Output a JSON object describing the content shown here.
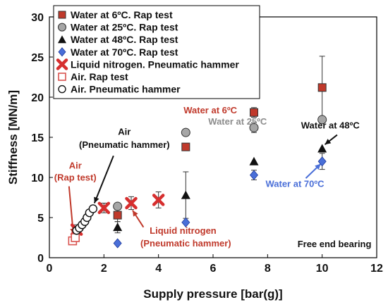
{
  "chart_data": {
    "type": "scatter",
    "xlabel": "Supply pressure [bar(g)]",
    "ylabel": "Stiffness [MN/m]",
    "xlim": [
      0,
      12
    ],
    "ylim": [
      0,
      30
    ],
    "x_ticks": [
      "0",
      "2",
      "4",
      "6",
      "8",
      "10",
      "12"
    ],
    "y_ticks": [
      "0",
      "5",
      "10",
      "15",
      "20",
      "25",
      "30"
    ],
    "grid": false,
    "legend_position": "top-left",
    "series": [
      {
        "name": "Water at 6ºC. Rap test",
        "marker": "square",
        "color": "#c0392b",
        "points": [
          {
            "x": 2.5,
            "y": 5.3,
            "err": 0.8
          },
          {
            "x": 5.0,
            "y": 13.8,
            "err": 0.4
          },
          {
            "x": 7.5,
            "y": 18.1,
            "err": 0.6
          },
          {
            "x": 10.0,
            "y": 21.2,
            "err": 3.9
          }
        ]
      },
      {
        "name": "Water at 25ºC. Rap test",
        "marker": "circle",
        "color": "#a6a6a6",
        "points": [
          {
            "x": 2.5,
            "y": 6.4,
            "err": 0.4
          },
          {
            "x": 5.0,
            "y": 15.6,
            "err": 0.4
          },
          {
            "x": 7.5,
            "y": 16.2,
            "err": 0.6
          },
          {
            "x": 10.0,
            "y": 17.2,
            "err": 0
          }
        ]
      },
      {
        "name": "Water at 48ºC. Rap test",
        "marker": "triangle",
        "color": "#111111",
        "points": [
          {
            "x": 2.5,
            "y": 3.8,
            "err": 0.7
          },
          {
            "x": 5.0,
            "y": 7.8,
            "err": 2.9
          },
          {
            "x": 7.5,
            "y": 12.0,
            "err": 0
          },
          {
            "x": 10.0,
            "y": 13.6,
            "err": 0
          }
        ]
      },
      {
        "name": "Water at 70ºC. Rap test",
        "marker": "diamond",
        "color": "#4a6fd8",
        "points": [
          {
            "x": 2.5,
            "y": 1.8,
            "err": 0
          },
          {
            "x": 5.0,
            "y": 4.4,
            "err": 0
          },
          {
            "x": 7.5,
            "y": 10.3,
            "err": 0.6
          },
          {
            "x": 10.0,
            "y": 12.0,
            "err": 1.0
          }
        ]
      },
      {
        "name": "Liquid nitrogen. Pneumatic hammer",
        "marker": "x",
        "color": "#d62f2f",
        "points": [
          {
            "x": 1.0,
            "y": 3.5,
            "err": 0.6
          },
          {
            "x": 2.0,
            "y": 6.2,
            "err": 0.6
          },
          {
            "x": 3.0,
            "y": 6.8,
            "err": 0.8
          },
          {
            "x": 4.0,
            "y": 7.2,
            "err": 1.0
          }
        ]
      },
      {
        "name": "Air. Rap test",
        "marker": "square-open",
        "color": "#d9534f",
        "points": [
          {
            "x": 0.85,
            "y": 2.1,
            "err": 0
          },
          {
            "x": 0.95,
            "y": 2.5,
            "err": 0
          }
        ]
      },
      {
        "name": "Air. Pneumatic hammer",
        "marker": "circle-open",
        "color": "#111111",
        "points": [
          {
            "x": 1.0,
            "y": 3.4,
            "err": 0
          },
          {
            "x": 1.1,
            "y": 3.7,
            "err": 0
          },
          {
            "x": 1.2,
            "y": 4.1,
            "err": 0
          },
          {
            "x": 1.3,
            "y": 4.5,
            "err": 0
          },
          {
            "x": 1.38,
            "y": 5.0,
            "err": 0
          },
          {
            "x": 1.47,
            "y": 5.6,
            "err": 0
          },
          {
            "x": 1.6,
            "y": 6.1,
            "err": 0
          }
        ]
      }
    ],
    "annotations": [
      {
        "text": "Water at 6ºC",
        "color": "#c0392b",
        "x": 5.9,
        "y": 18.0
      },
      {
        "text": "Water at 25ºC",
        "color": "#8c8c8c",
        "x": 6.9,
        "y": 16.6
      },
      {
        "text": "Water at 48ºC",
        "color": "#111111",
        "x": 10.3,
        "y": 16.1
      },
      {
        "text": "Water at 70ºC",
        "color": "#4a6fd8",
        "x": 9.0,
        "y": 8.8
      },
      {
        "text": "Air",
        "color": "#111111",
        "x": 2.75,
        "y": 15.3
      },
      {
        "text": "(Pneumatic hammer)",
        "color": "#111111",
        "x": 2.75,
        "y": 13.7
      },
      {
        "text": "Air",
        "color": "#c0392b",
        "x": 0.95,
        "y": 11.1
      },
      {
        "text": "(Rap test)",
        "color": "#c0392b",
        "x": 0.95,
        "y": 9.6
      },
      {
        "text": "Liquid nitrogen",
        "color": "#c0392b",
        "x": 4.9,
        "y": 3.0
      },
      {
        "text": "(Pneumatic hammer)",
        "color": "#c0392b",
        "x": 5.0,
        "y": 1.4
      },
      {
        "text": "Free end bearing",
        "color": "#111111",
        "x": 10.45,
        "y": 1.3
      }
    ],
    "arrows": [
      {
        "color": "#111111",
        "x1": 2.35,
        "y1": 12.7,
        "x2": 1.65,
        "y2": 6.8
      },
      {
        "color": "#c0392b",
        "x1": 0.72,
        "y1": 8.9,
        "x2": 0.88,
        "y2": 2.9
      },
      {
        "color": "#c0392b",
        "x1": 3.45,
        "y1": 3.8,
        "x2": 3.05,
        "y2": 5.9
      },
      {
        "color": "#111111",
        "x1": 10.55,
        "y1": 15.3,
        "x2": 10.1,
        "y2": 14.1
      },
      {
        "color": "#4a6fd8",
        "x1": 9.4,
        "y1": 9.9,
        "x2": 9.95,
        "y2": 11.7
      }
    ]
  }
}
